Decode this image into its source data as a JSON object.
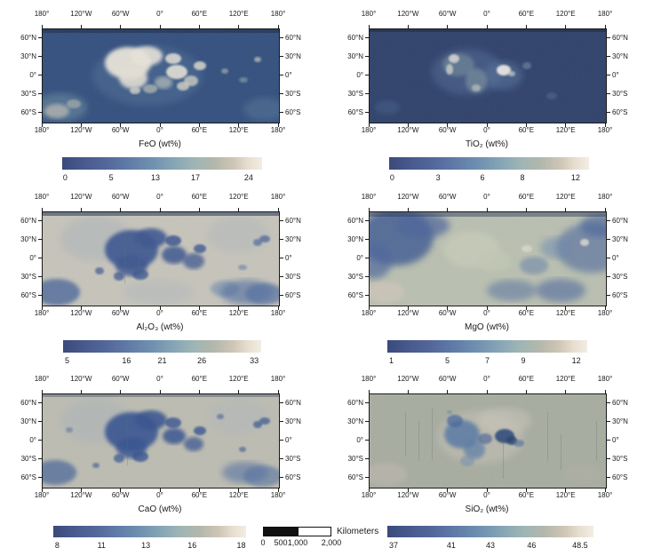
{
  "axes": {
    "lon_labels": [
      "180°",
      "120°W",
      "60°W",
      "0°",
      "60°E",
      "120°E",
      "180°"
    ],
    "lat_labels": [
      "60°N",
      "30°N",
      "0°",
      "30°S",
      "60°S"
    ]
  },
  "panels": [
    {
      "name": "FeO",
      "title": "FeO (wt%)",
      "colorbar_ticks": [
        "0",
        "5",
        "13",
        "17",
        "24"
      ]
    },
    {
      "name": "TiO2",
      "title": "TiO₂ (wt%)",
      "colorbar_ticks": [
        "0",
        "3",
        "6",
        "8",
        "12"
      ]
    },
    {
      "name": "Al2O3",
      "title": "Al₂O₃ (wt%)",
      "colorbar_ticks": [
        "5",
        "16",
        "21",
        "26",
        "33"
      ]
    },
    {
      "name": "MgO",
      "title": "MgO (wt%)",
      "colorbar_ticks": [
        "1",
        "5",
        "7",
        "9",
        "12"
      ]
    },
    {
      "name": "CaO",
      "title": "CaO (wt%)",
      "colorbar_ticks": [
        "8",
        "11",
        "13",
        "16",
        "18"
      ]
    },
    {
      "name": "SiO2",
      "title": "SiO₂ (wt%)",
      "colorbar_ticks": [
        "37",
        "41",
        "43",
        "46",
        "48.5"
      ]
    }
  ],
  "scale_bar": {
    "label": "Kilometers",
    "ticks": [
      "0",
      "500",
      "1,000",
      "2,000"
    ]
  },
  "colors": {
    "ramp_low": "#3b4a7c",
    "ramp_mid": "#6f91b0",
    "ramp_high": "#f2ede4",
    "text": "#1a1a1a"
  },
  "chart_data": [
    {
      "type": "heatmap",
      "title": "FeO (wt%)",
      "projection": "equirectangular",
      "lon_range_deg": [
        -180,
        180
      ],
      "lat_range_deg": [
        -75,
        75
      ],
      "colorbar_ticks": [
        0,
        5,
        13,
        17,
        24
      ],
      "value_range": [
        0,
        24
      ]
    },
    {
      "type": "heatmap",
      "title": "TiO₂ (wt%)",
      "projection": "equirectangular",
      "lon_range_deg": [
        -180,
        180
      ],
      "lat_range_deg": [
        -75,
        75
      ],
      "colorbar_ticks": [
        0,
        3,
        6,
        8,
        12
      ],
      "value_range": [
        0,
        12
      ]
    },
    {
      "type": "heatmap",
      "title": "Al₂O₃ (wt%)",
      "projection": "equirectangular",
      "lon_range_deg": [
        -180,
        180
      ],
      "lat_range_deg": [
        -75,
        75
      ],
      "colorbar_ticks": [
        5,
        16,
        21,
        26,
        33
      ],
      "value_range": [
        5,
        33
      ]
    },
    {
      "type": "heatmap",
      "title": "MgO (wt%)",
      "projection": "equirectangular",
      "lon_range_deg": [
        -180,
        180
      ],
      "lat_range_deg": [
        -75,
        75
      ],
      "colorbar_ticks": [
        1,
        5,
        7,
        9,
        12
      ],
      "value_range": [
        1,
        12
      ]
    },
    {
      "type": "heatmap",
      "title": "CaO (wt%)",
      "projection": "equirectangular",
      "lon_range_deg": [
        -180,
        180
      ],
      "lat_range_deg": [
        -75,
        75
      ],
      "colorbar_ticks": [
        8,
        11,
        13,
        16,
        18
      ],
      "value_range": [
        8,
        18
      ]
    },
    {
      "type": "heatmap",
      "title": "SiO₂ (wt%)",
      "projection": "equirectangular",
      "lon_range_deg": [
        -180,
        180
      ],
      "lat_range_deg": [
        -75,
        75
      ],
      "colorbar_ticks": [
        37,
        41,
        43,
        46,
        48.5
      ],
      "value_range": [
        37,
        48.5
      ]
    }
  ]
}
